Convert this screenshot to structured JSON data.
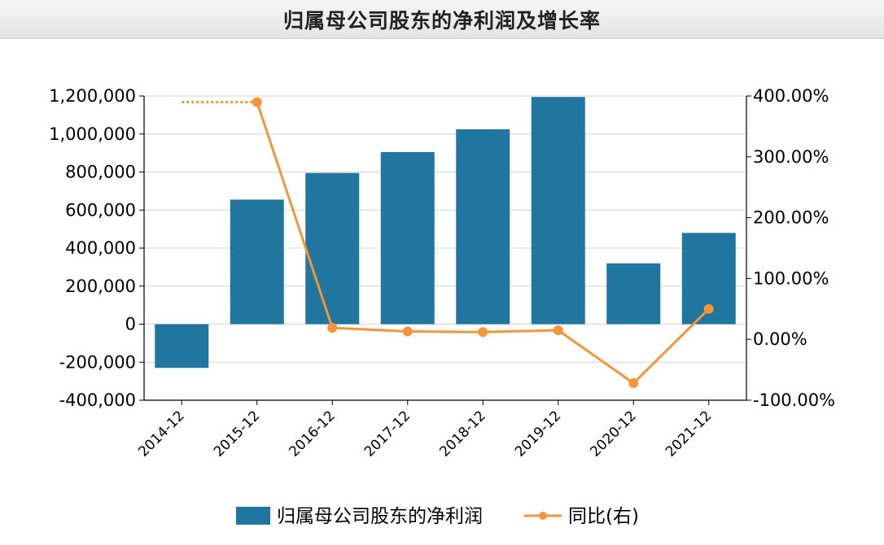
{
  "chart_data": {
    "type": "bar",
    "title": "归属母公司股东的净利润及增长率",
    "categories": [
      "2014-12",
      "2015-12",
      "2016-12",
      "2017-12",
      "2018-12",
      "2019-12",
      "2020-12",
      "2021-12"
    ],
    "series": [
      {
        "name": "归属母公司股东的净利润",
        "type": "bar",
        "axis": "left",
        "color": "#21769f",
        "values": [
          -230000,
          655000,
          795000,
          905000,
          1025000,
          1195000,
          320000,
          480000
        ]
      },
      {
        "name": "同比(右)",
        "type": "line",
        "axis": "right",
        "color": "#f7943a",
        "values": [
          null,
          390,
          19,
          13,
          12,
          15,
          -72,
          50
        ]
      }
    ],
    "y_left": {
      "min": -400000,
      "max": 1200000,
      "ticks": [
        -400000,
        -200000,
        0,
        200000,
        400000,
        600000,
        800000,
        1000000,
        1200000
      ],
      "tick_labels": [
        "-400,000",
        "-200,000",
        "0",
        "200,000",
        "400,000",
        "600,000",
        "800,000",
        "1,000,000",
        "1,200,000"
      ]
    },
    "y_right": {
      "min": -100,
      "max": 400,
      "ticks": [
        -100,
        0,
        100,
        200,
        300,
        400
      ],
      "tick_labels": [
        "-100.00%",
        "0.00%",
        "100.00%",
        "200.00%",
        "300.00%",
        "400.00%"
      ]
    },
    "grid": true,
    "legend_position": "bottom",
    "legend": [
      "归属母公司股东的净利润",
      "同比(右)"
    ]
  }
}
